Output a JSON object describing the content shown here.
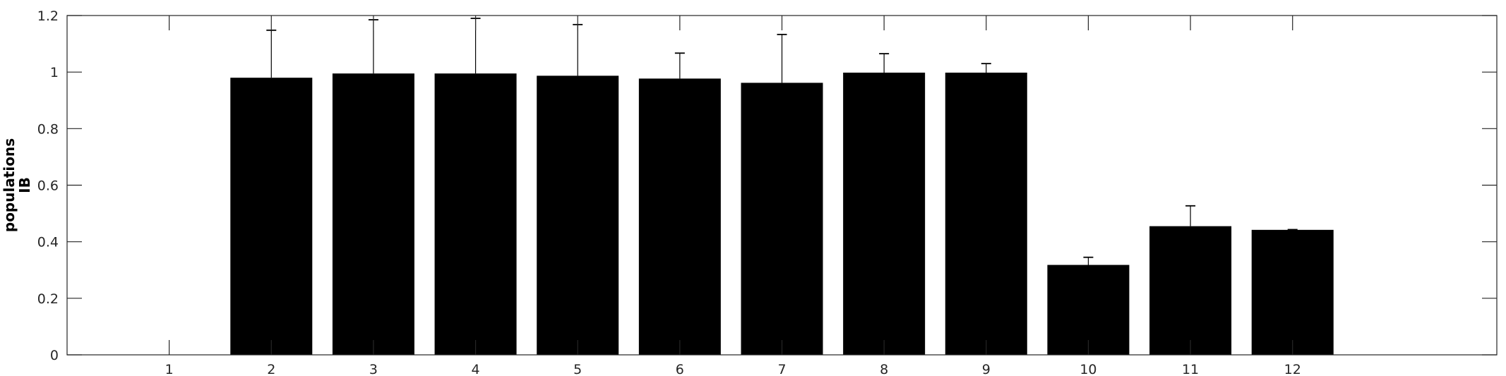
{
  "chart_data": {
    "type": "bar",
    "title": "",
    "xlabel": "",
    "ylabel": [
      "populations",
      "IB"
    ],
    "categories": [
      "1",
      "2",
      "3",
      "4",
      "5",
      "6",
      "7",
      "8",
      "9",
      "10",
      "11",
      "12"
    ],
    "values": [
      0,
      0.98,
      0.995,
      0.995,
      0.987,
      0.977,
      0.962,
      0.998,
      0.998,
      0.318,
      0.455,
      0.442
    ],
    "error_upper": [
      0,
      1.148,
      1.185,
      1.19,
      1.168,
      1.067,
      1.133,
      1.065,
      1.03,
      0.345,
      0.527,
      0.443
    ],
    "ylim": [
      0,
      1.2
    ],
    "xlim": [
      0,
      14
    ],
    "yticks": [
      "0",
      "0.2",
      "0.4",
      "0.6",
      "0.8",
      "1",
      "1.2"
    ],
    "grid": false,
    "legend": "none",
    "bar_color": "#000000",
    "axis_color": "#262626"
  }
}
